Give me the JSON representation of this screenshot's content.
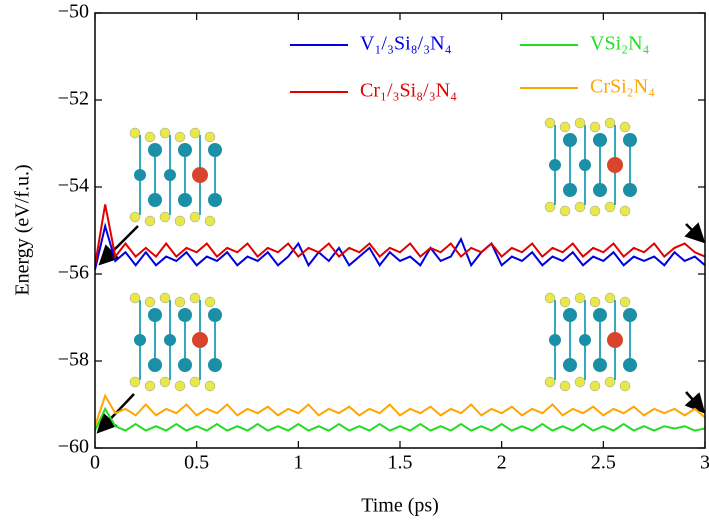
{
  "chart_data": {
    "type": "line",
    "xlabel": "Time (ps)",
    "ylabel": "Energy (eV/f.u.)",
    "x": [
      0,
      0.05,
      0.1,
      0.15,
      0.2,
      0.25,
      0.3,
      0.35,
      0.4,
      0.45,
      0.5,
      0.55,
      0.6,
      0.65,
      0.7,
      0.75,
      0.8,
      0.85,
      0.9,
      0.95,
      1,
      1.05,
      1.1,
      1.15,
      1.2,
      1.25,
      1.3,
      1.35,
      1.4,
      1.45,
      1.5,
      1.55,
      1.6,
      1.65,
      1.7,
      1.75,
      1.8,
      1.85,
      1.9,
      1.95,
      2,
      2.05,
      2.1,
      2.15,
      2.2,
      2.25,
      2.3,
      2.35,
      2.4,
      2.45,
      2.5,
      2.55,
      2.6,
      2.65,
      2.7,
      2.75,
      2.8,
      2.85,
      2.9,
      2.95,
      3
    ],
    "series": [
      {
        "name": "V₁/₃Si₈/₃N₄",
        "color": "#0000e0",
        "values": [
          -55.9,
          -54.9,
          -55.7,
          -55.5,
          -55.8,
          -55.5,
          -55.8,
          -55.6,
          -55.7,
          -55.5,
          -55.8,
          -55.6,
          -55.7,
          -55.5,
          -55.8,
          -55.6,
          -55.7,
          -55.5,
          -55.8,
          -55.6,
          -55.3,
          -55.8,
          -55.5,
          -55.7,
          -55.4,
          -55.8,
          -55.6,
          -55.4,
          -55.8,
          -55.5,
          -55.7,
          -55.6,
          -55.8,
          -55.4,
          -55.7,
          -55.6,
          -55.2,
          -55.8,
          -55.5,
          -55.3,
          -55.8,
          -55.6,
          -55.7,
          -55.5,
          -55.8,
          -55.6,
          -55.7,
          -55.5,
          -55.8,
          -55.6,
          -55.7,
          -55.5,
          -55.8,
          -55.6,
          -55.7,
          -55.6,
          -55.8,
          -55.5,
          -55.7,
          -55.6,
          -55.8
        ]
      },
      {
        "name": "Cr₁/₃Si₈/₃N₄",
        "color": "#e00000",
        "values": [
          -55.8,
          -54.4,
          -55.6,
          -55.3,
          -55.6,
          -55.4,
          -55.6,
          -55.3,
          -55.6,
          -55.4,
          -55.5,
          -55.3,
          -55.6,
          -55.4,
          -55.5,
          -55.3,
          -55.6,
          -55.4,
          -55.5,
          -55.3,
          -55.6,
          -55.4,
          -55.5,
          -55.3,
          -55.6,
          -55.4,
          -55.5,
          -55.3,
          -55.6,
          -55.4,
          -55.5,
          -55.3,
          -55.6,
          -55.4,
          -55.5,
          -55.3,
          -55.6,
          -55.4,
          -55.5,
          -55.3,
          -55.6,
          -55.4,
          -55.5,
          -55.3,
          -55.6,
          -55.4,
          -55.5,
          -55.3,
          -55.6,
          -55.4,
          -55.5,
          -55.3,
          -55.6,
          -55.4,
          -55.5,
          -55.3,
          -55.6,
          -55.4,
          -55.3,
          -55.5,
          -55.6
        ]
      },
      {
        "name": "VSi₂N₄",
        "color": "#22dd22",
        "values": [
          -59.6,
          -59.1,
          -59.5,
          -59.6,
          -59.45,
          -59.6,
          -59.5,
          -59.6,
          -59.45,
          -59.6,
          -59.5,
          -59.6,
          -59.45,
          -59.6,
          -59.5,
          -59.6,
          -59.45,
          -59.6,
          -59.5,
          -59.6,
          -59.45,
          -59.6,
          -59.5,
          -59.6,
          -59.45,
          -59.6,
          -59.5,
          -59.6,
          -59.45,
          -59.6,
          -59.5,
          -59.6,
          -59.45,
          -59.6,
          -59.5,
          -59.6,
          -59.45,
          -59.6,
          -59.5,
          -59.6,
          -59.45,
          -59.6,
          -59.5,
          -59.6,
          -59.45,
          -59.6,
          -59.5,
          -59.6,
          -59.45,
          -59.6,
          -59.5,
          -59.6,
          -59.45,
          -59.6,
          -59.5,
          -59.6,
          -59.5,
          -59.55,
          -59.5,
          -59.6,
          -59.55
        ]
      },
      {
        "name": "CrSi₂N₄",
        "color": "#ffa500",
        "values": [
          -59.5,
          -58.8,
          -59.2,
          -59.1,
          -59.25,
          -59.0,
          -59.25,
          -59.1,
          -59.2,
          -59.0,
          -59.25,
          -59.1,
          -59.2,
          -59.0,
          -59.25,
          -59.1,
          -59.2,
          -59.05,
          -59.25,
          -59.1,
          -59.2,
          -59.0,
          -59.25,
          -59.1,
          -59.2,
          -59.05,
          -59.25,
          -59.1,
          -59.2,
          -59.0,
          -59.25,
          -59.1,
          -59.2,
          -59.05,
          -59.25,
          -59.1,
          -59.2,
          -59.0,
          -59.25,
          -59.1,
          -59.2,
          -59.05,
          -59.25,
          -59.1,
          -59.2,
          -59.0,
          -59.25,
          -59.1,
          -59.2,
          -59.05,
          -59.25,
          -59.1,
          -59.2,
          -59.05,
          -59.25,
          -59.1,
          -59.2,
          -59.1,
          -59.25,
          -59.1,
          -59.3
        ]
      }
    ],
    "xlim": [
      0,
      3
    ],
    "ylim": [
      -60,
      -50
    ],
    "xticks": [
      0,
      0.5,
      1,
      1.5,
      2,
      2.5,
      3
    ],
    "yticks": [
      {
        "value": -60,
        "label": "−60"
      },
      {
        "value": -58,
        "label": "−58"
      },
      {
        "value": -56,
        "label": "−56"
      },
      {
        "value": -54,
        "label": "−54"
      },
      {
        "value": -52,
        "label": "−52"
      },
      {
        "value": -50,
        "label": "−50"
      }
    ],
    "grid": false
  }
}
